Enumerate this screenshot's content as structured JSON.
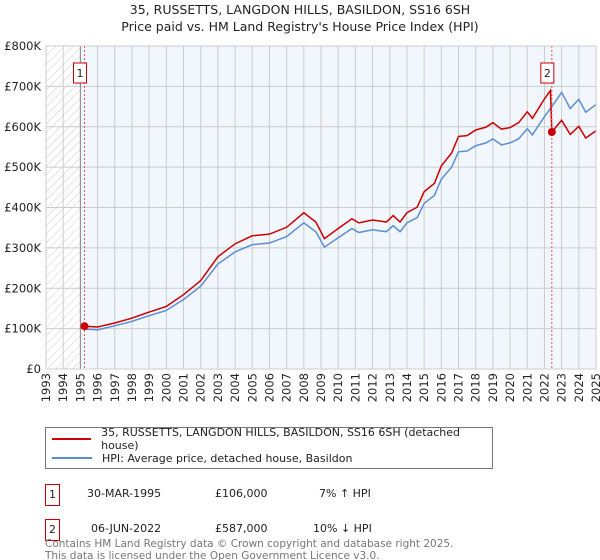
{
  "title": "35, RUSSETTS, LANGDON HILLS, BASILDON, SS16 6SH",
  "subtitle": "Price paid vs. HM Land Registry's House Price Index (HPI)",
  "chart_data": {
    "type": "line",
    "xlim": [
      1993,
      2025
    ],
    "ylim": [
      0,
      800000
    ],
    "x_ticks": [
      "1993",
      "1994",
      "1995",
      "1996",
      "1997",
      "1998",
      "1999",
      "2000",
      "2001",
      "2002",
      "2003",
      "2004",
      "2005",
      "2006",
      "2007",
      "2008",
      "2009",
      "2010",
      "2011",
      "2012",
      "2013",
      "2014",
      "2015",
      "2016",
      "2017",
      "2018",
      "2019",
      "2020",
      "2021",
      "2022",
      "2023",
      "2024",
      "2025"
    ],
    "y_ticks": [
      {
        "v": 0,
        "label": "£0"
      },
      {
        "v": 100000,
        "label": "£100K"
      },
      {
        "v": 200000,
        "label": "£200K"
      },
      {
        "v": 300000,
        "label": "£300K"
      },
      {
        "v": 400000,
        "label": "£400K"
      },
      {
        "v": 500000,
        "label": "£500K"
      },
      {
        "v": 600000,
        "label": "£600K"
      },
      {
        "v": 700000,
        "label": "£700K"
      },
      {
        "v": 800000,
        "label": "£800K"
      }
    ],
    "grid": true,
    "series": [
      {
        "name": "35, RUSSETTS, LANGDON HILLS, BASILDON, SS16 6SH (detached house)",
        "color": "#cc0000",
        "x": [
          1995.24,
          1996,
          1997,
          1998,
          1999,
          2000,
          2001,
          2002,
          2003,
          2004,
          2005,
          2006,
          2007,
          2008,
          2008.7,
          2009.2,
          2010,
          2010.8,
          2011.2,
          2012,
          2012.8,
          2013.2,
          2013.6,
          2014,
          2014.6,
          2015,
          2015.6,
          2016,
          2016.6,
          2017,
          2017.5,
          2018,
          2018.6,
          2019,
          2019.5,
          2020,
          2020.5,
          2021,
          2021.3,
          2022,
          2022.35,
          2022.43,
          2023,
          2023.5,
          2024,
          2024.4,
          2025
        ],
        "y": [
          106000,
          104000,
          114000,
          126000,
          141000,
          155000,
          184000,
          219000,
          278000,
          310000,
          330000,
          334000,
          351000,
          387000,
          364000,
          323000,
          348000,
          372000,
          362000,
          369000,
          364000,
          380000,
          364000,
          387000,
          401000,
          439000,
          460000,
          503000,
          535000,
          576000,
          578000,
          592000,
          599000,
          610000,
          594000,
          598000,
          610000,
          637000,
          621000,
          669000,
          690000,
          587000,
          616000,
          581000,
          601000,
          572000,
          590000
        ]
      },
      {
        "name": "HPI: Average price, detached house, Basildon",
        "color": "#5b8fd4",
        "x": [
          1995.24,
          1996,
          1997,
          1998,
          1999,
          2000,
          2001,
          2002,
          2003,
          2004,
          2005,
          2006,
          2007,
          2008,
          2008.7,
          2009.2,
          2010,
          2010.8,
          2011.2,
          2012,
          2012.8,
          2013.2,
          2013.6,
          2014,
          2014.6,
          2015,
          2015.6,
          2016,
          2016.6,
          2017,
          2017.5,
          2018,
          2018.6,
          2019,
          2019.5,
          2020,
          2020.5,
          2021,
          2021.3,
          2022,
          2022.43,
          2023,
          2023.5,
          2024,
          2024.4,
          2025
        ],
        "y": [
          99000,
          97000,
          107000,
          118000,
          132000,
          145000,
          172000,
          205000,
          260000,
          290000,
          308000,
          312000,
          328000,
          362000,
          340000,
          302000,
          325000,
          348000,
          338000,
          345000,
          340000,
          355000,
          340000,
          362000,
          375000,
          410000,
          430000,
          470000,
          500000,
          538000,
          540000,
          553000,
          560000,
          570000,
          555000,
          560000,
          570000,
          595000,
          580000,
          625000,
          650000,
          685000,
          645000,
          668000,
          636000,
          655000
        ]
      }
    ],
    "annotations": [
      {
        "label": "1",
        "x": 1995.24,
        "y": 106000
      },
      {
        "label": "2",
        "x": 2022.43,
        "y": 587000
      }
    ],
    "legend_placement": "bottom"
  },
  "transactions": [
    {
      "num": "1",
      "date": "30-MAR-1995",
      "price": "£106,000",
      "delta": "7% ↑ HPI"
    },
    {
      "num": "2",
      "date": "06-JUN-2022",
      "price": "£587,000",
      "delta": "10% ↓ HPI"
    }
  ],
  "footer": [
    "Contains HM Land Registry data © Crown copyright and database right 2025.",
    "This data is licensed under the Open Government Licence v3.0."
  ]
}
